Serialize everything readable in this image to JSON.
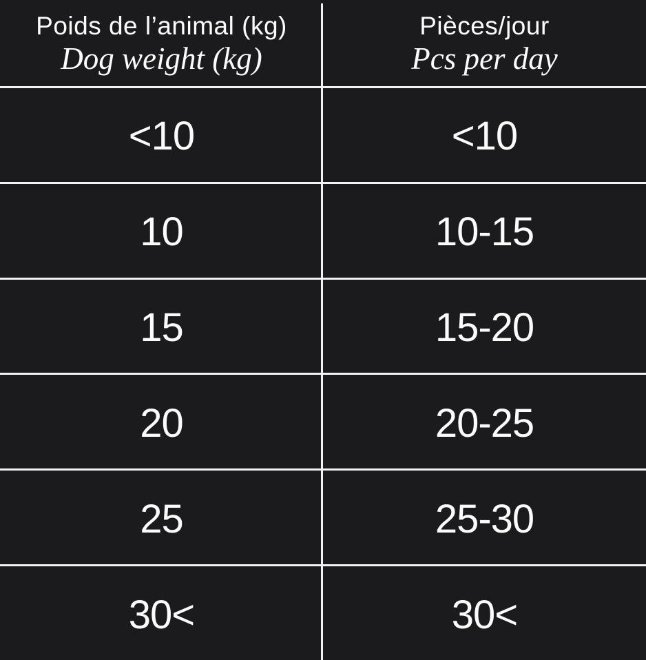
{
  "chart_data": {
    "type": "table",
    "columns": [
      {
        "header_fr": "Poids de l’animal (kg)",
        "header_en": "Dog weight (kg)"
      },
      {
        "header_fr": "Pièces/jour",
        "header_en": "Pcs per day"
      }
    ],
    "rows": [
      [
        "<10",
        "<10"
      ],
      [
        "10",
        "10-15"
      ],
      [
        "15",
        "15-20"
      ],
      [
        "20",
        "20-25"
      ],
      [
        "25",
        "25-30"
      ],
      [
        "30<",
        "30<"
      ]
    ]
  },
  "colors": {
    "background": "#1b1b1d",
    "grid_line": "#f3f3f3",
    "text": "#fbfbfb"
  }
}
